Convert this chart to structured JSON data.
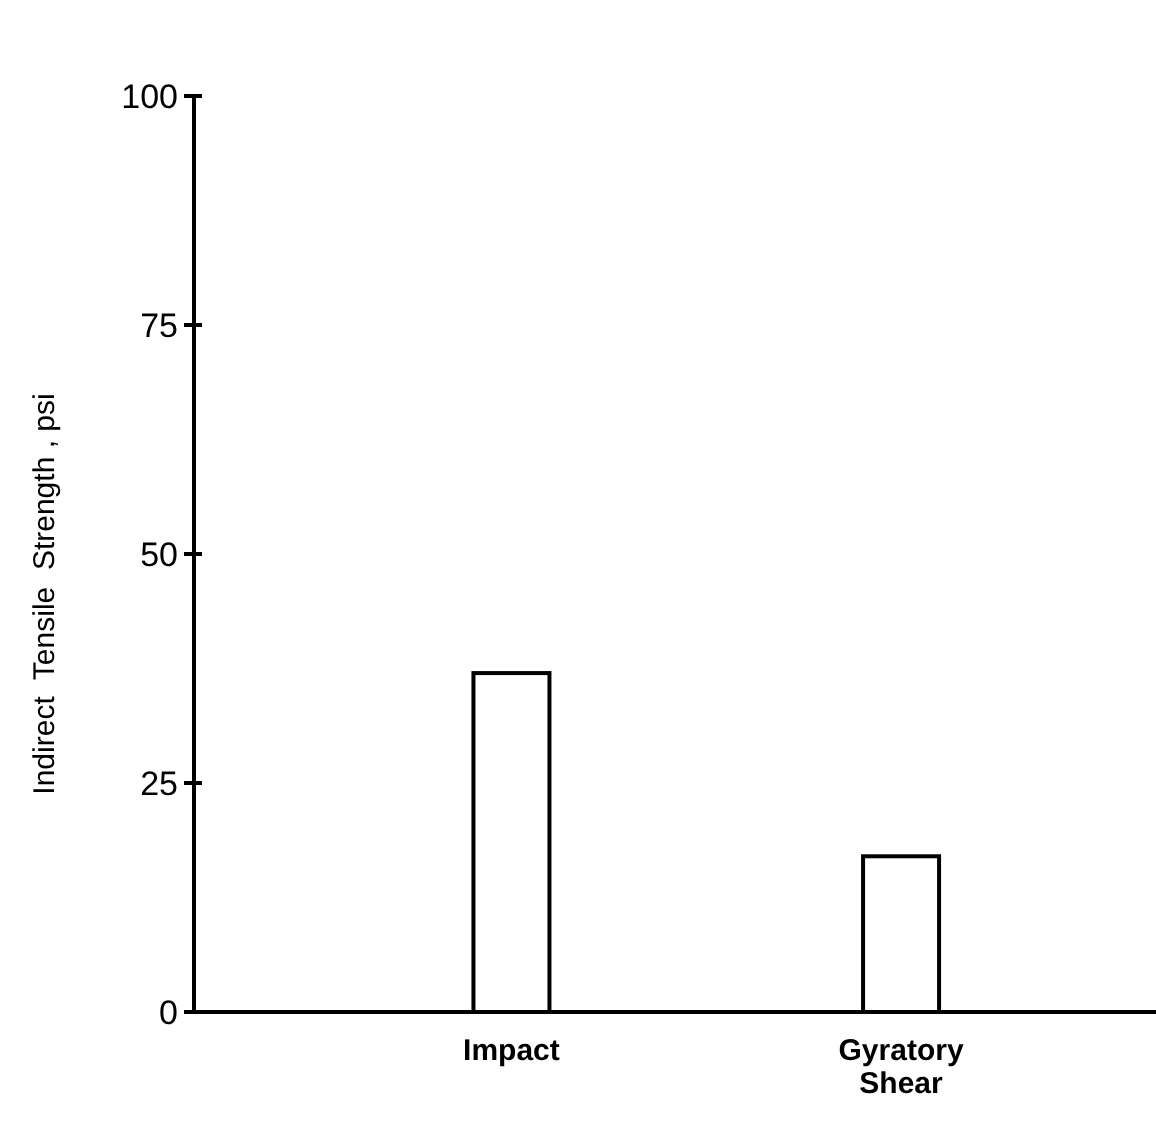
{
  "chart_data": {
    "type": "bar",
    "ylabel": "Indirect  Tensile  Strength , psi",
    "categories": [
      "Impact",
      "Gyratory\nShear"
    ],
    "values": [
      37,
      17
    ],
    "color": "#ffffff",
    "ylim": [
      0,
      100
    ],
    "yticks": [
      0,
      25,
      50,
      75,
      100
    ],
    "grid": false
  }
}
